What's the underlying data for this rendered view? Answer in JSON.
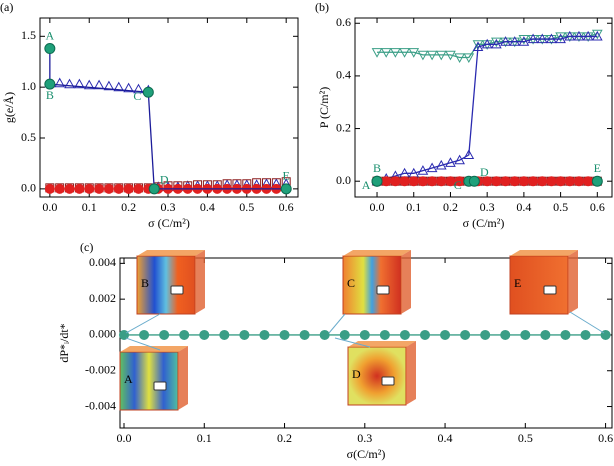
{
  "chart_data": [
    {
      "type": "scatter",
      "panel": "(a)",
      "x_label": "σ (C/m²)",
      "y_label": "g(e/Å)",
      "xlim": [
        -0.025,
        0.63
      ],
      "ylim": [
        -0.08,
        1.68
      ],
      "xticks": [
        {
          "value": 0,
          "label": "0.0"
        },
        0.1,
        0.2,
        0.3,
        0.4,
        0.5,
        0.6
      ],
      "yticks": [
        {
          "value": 0,
          "label": "0.0"
        },
        0.5,
        {
          "value": 1,
          "label": "1.0"
        },
        1.5
      ],
      "series": [
        {
          "color": "#2b2bb0",
          "marker": "triangle-up",
          "filled": false,
          "line": false,
          "x": [
            0,
            0.025,
            0.05,
            0.075,
            0.1,
            0.125,
            0.15,
            0.175,
            0.2,
            0.225,
            0.25,
            0.275,
            0.3,
            0.325,
            0.35,
            0.375,
            0.4,
            0.425,
            0.45,
            0.475,
            0.5,
            0.525,
            0.55,
            0.575,
            0.6
          ],
          "values": [
            1.04,
            1.04,
            1.03,
            1.03,
            1.02,
            1.02,
            1.01,
            1.0,
            0.99,
            0.98,
            0.97,
            0.02,
            0.02,
            0.02,
            0.03,
            0.03,
            0.03,
            0.03,
            0.04,
            0.04,
            0.04,
            0.04,
            0.05,
            0.05,
            0.05
          ]
        },
        {
          "color": "#8b1a1a",
          "marker": "square",
          "filled": false,
          "line": false,
          "x": [
            0,
            0.025,
            0.05,
            0.075,
            0.1,
            0.125,
            0.15,
            0.175,
            0.2,
            0.225,
            0.25,
            0.275,
            0.3,
            0.325,
            0.35,
            0.375,
            0.4,
            0.425,
            0.45,
            0.475,
            0.5,
            0.525,
            0.55,
            0.575,
            0.6
          ],
          "values": [
            0.01,
            0.01,
            0.01,
            0.01,
            0.01,
            0.01,
            0.01,
            0.01,
            0.01,
            0.01,
            0.01,
            0.02,
            0.03,
            0.03,
            0.03,
            0.04,
            0.04,
            0.04,
            0.05,
            0.05,
            0.05,
            0.06,
            0.06,
            0.06,
            0.07
          ]
        },
        {
          "color": "#e02020",
          "marker": "circle",
          "filled": true,
          "line": false,
          "x": [
            0,
            0.025,
            0.05,
            0.075,
            0.1,
            0.125,
            0.15,
            0.175,
            0.2,
            0.225,
            0.25,
            0.275,
            0.3,
            0.325,
            0.35,
            0.375,
            0.4,
            0.425,
            0.45,
            0.475,
            0.5,
            0.525,
            0.55,
            0.575,
            0.6
          ],
          "values": [
            0,
            0,
            0,
            0,
            0,
            0,
            0,
            0,
            0,
            0,
            0,
            0,
            0,
            0,
            0,
            0,
            0,
            0,
            0,
            0,
            0,
            0,
            0,
            0,
            0
          ]
        },
        {
          "color": "#1c1c9a",
          "marker": "none",
          "filled": false,
          "line": true,
          "x": [
            0,
            0,
            0.25,
            0.265,
            0.6
          ],
          "values": [
            1.38,
            1.03,
            0.95,
            0,
            0
          ]
        }
      ],
      "points": [
        {
          "label": "A",
          "x": 0,
          "y": 1.38,
          "position": "above"
        },
        {
          "label": "B",
          "x": 0,
          "y": 1.03,
          "position": "below"
        },
        {
          "label": "C",
          "x": 0.25,
          "y": 0.95,
          "position": "left"
        },
        {
          "label": "D",
          "x": 0.265,
          "y": 0,
          "position": "right"
        },
        {
          "label": "E",
          "x": 0.6,
          "y": 0,
          "position": "above"
        }
      ]
    },
    {
      "type": "scatter",
      "panel": "(b)",
      "x_label": "σ (C/m²)",
      "y_label": "P (C/m²)",
      "xlim": [
        -0.06,
        0.64
      ],
      "ylim": [
        -0.06,
        0.62
      ],
      "xticks": [
        {
          "value": 0,
          "label": "0.0"
        },
        0.1,
        0.2,
        0.3,
        0.4,
        0.5,
        0.6
      ],
      "yticks": [
        {
          "value": 0,
          "label": "0.0"
        },
        0.2,
        0.4,
        0.6
      ],
      "series": [
        {
          "color": "#3a9e86",
          "marker": "triangle-down",
          "filled": false,
          "line": true,
          "x": [
            0,
            0.025,
            0.05,
            0.075,
            0.1,
            0.125,
            0.15,
            0.175,
            0.2,
            0.225,
            0.25,
            0.275,
            0.3,
            0.325,
            0.35,
            0.375,
            0.4,
            0.425,
            0.45,
            0.475,
            0.5,
            0.525,
            0.55,
            0.575,
            0.6
          ],
          "values": [
            0.49,
            0.49,
            0.49,
            0.49,
            0.49,
            0.48,
            0.48,
            0.48,
            0.48,
            0.47,
            0.47,
            0.52,
            0.52,
            0.53,
            0.53,
            0.53,
            0.54,
            0.54,
            0.54,
            0.54,
            0.55,
            0.55,
            0.55,
            0.55,
            0.56
          ]
        },
        {
          "color": "#2b2bb0",
          "marker": "triangle-up",
          "filled": false,
          "line": true,
          "x": [
            0,
            0.025,
            0.05,
            0.075,
            0.1,
            0.125,
            0.15,
            0.175,
            0.2,
            0.225,
            0.25,
            0.275,
            0.3,
            0.325,
            0.35,
            0.375,
            0.4,
            0.425,
            0.45,
            0.475,
            0.5,
            0.525,
            0.55,
            0.575,
            0.6
          ],
          "values": [
            0,
            0.01,
            0.02,
            0.03,
            0.03,
            0.04,
            0.05,
            0.06,
            0.07,
            0.08,
            0.1,
            0.51,
            0.52,
            0.52,
            0.53,
            0.53,
            0.53,
            0.54,
            0.54,
            0.54,
            0.54,
            0.55,
            0.55,
            0.55,
            0.55
          ]
        },
        {
          "color": "#8b1a1a",
          "marker": "square",
          "filled": false,
          "line": false,
          "x": [
            0,
            0.025,
            0.05,
            0.075,
            0.1,
            0.125,
            0.15,
            0.175,
            0.2,
            0.225,
            0.25,
            0.275,
            0.3,
            0.325,
            0.35,
            0.375,
            0.4,
            0.425,
            0.45,
            0.475,
            0.5,
            0.525,
            0.55,
            0.575,
            0.6
          ],
          "values": [
            0,
            0,
            0,
            0,
            0,
            0,
            0,
            0,
            0,
            0,
            0,
            0,
            0,
            0,
            0,
            0,
            0,
            0,
            0,
            0,
            0,
            0,
            0,
            0,
            0
          ]
        },
        {
          "color": "#e02020",
          "marker": "circle",
          "filled": true,
          "line": false,
          "x": [
            0,
            0.025,
            0.05,
            0.075,
            0.1,
            0.125,
            0.15,
            0.175,
            0.2,
            0.225,
            0.25,
            0.275,
            0.3,
            0.325,
            0.35,
            0.375,
            0.4,
            0.425,
            0.45,
            0.475,
            0.5,
            0.525,
            0.55,
            0.575,
            0.6
          ],
          "values": [
            0,
            0,
            0,
            0,
            0,
            0,
            0,
            0,
            0,
            0,
            0,
            0,
            0,
            0,
            0,
            0,
            0,
            0,
            0,
            0,
            0,
            0,
            0,
            0,
            0
          ]
        }
      ],
      "points": [
        {
          "label": "A",
          "x": 0,
          "y": 0,
          "position": "left"
        },
        {
          "label": "B",
          "x": 0,
          "y": 0,
          "position": "above"
        },
        {
          "label": "C",
          "x": 0.25,
          "y": 0,
          "position": "left"
        },
        {
          "label": "D",
          "x": 0.265,
          "y": 0,
          "position": "right"
        },
        {
          "label": "E",
          "x": 0.6,
          "y": 0,
          "position": "above"
        }
      ]
    },
    {
      "type": "scatter",
      "panel": "(c)",
      "x_label": "σ(C/m²)",
      "y_label": "dP*ᵢ/dt*",
      "xlim": [
        -0.005,
        0.608
      ],
      "ylim": [
        -0.0052,
        0.0043
      ],
      "xticks": [
        {
          "value": 0,
          "label": "0.0"
        },
        0.1,
        0.2,
        0.3,
        0.4,
        0.5,
        0.6
      ],
      "yticks": [
        -0.004,
        -0.002,
        {
          "value": 0,
          "label": "0.000"
        },
        0.002,
        0.004
      ],
      "series": [
        {
          "color": "#3a9e86",
          "marker": "circle",
          "filled": true,
          "line": true,
          "x": [
            0,
            0.025,
            0.05,
            0.075,
            0.1,
            0.125,
            0.15,
            0.175,
            0.2,
            0.225,
            0.25,
            0.275,
            0.3,
            0.325,
            0.35,
            0.375,
            0.4,
            0.425,
            0.45,
            0.475,
            0.5,
            0.525,
            0.55,
            0.575,
            0.6
          ],
          "values": [
            0,
            0,
            0,
            0,
            0,
            0,
            0,
            0,
            0,
            0,
            0,
            0,
            0,
            0,
            0,
            0,
            0,
            0,
            0,
            0,
            0,
            0,
            0,
            0,
            0
          ]
        }
      ],
      "insets": [
        "B",
        "C",
        "E",
        "A",
        "D"
      ],
      "points": []
    }
  ]
}
